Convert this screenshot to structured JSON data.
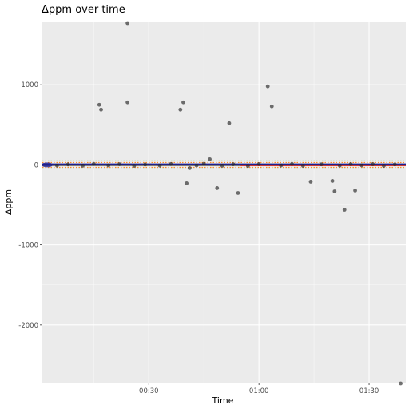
{
  "chart_data": {
    "type": "scatter",
    "title": "Δppm over time",
    "xlabel": "Time",
    "ylabel": "Δppm",
    "x_unit": "minutes",
    "xlim": [
      1,
      100
    ],
    "ylim": [
      -2720,
      1780
    ],
    "x_ticks": [
      {
        "value": 30,
        "label": "00:30"
      },
      {
        "value": 60,
        "label": "01:00"
      },
      {
        "value": 90,
        "label": "01:30"
      }
    ],
    "y_ticks": [
      {
        "value": -2000,
        "label": "-2000"
      },
      {
        "value": -1000,
        "label": "-1000"
      },
      {
        "value": 0,
        "label": "0"
      },
      {
        "value": 1000,
        "label": "1000"
      }
    ],
    "grid": true,
    "legend": "none",
    "reference_lines": [
      {
        "y": 50,
        "color": "#31a354",
        "style": "dotted"
      },
      {
        "y": -50,
        "color": "#31a354",
        "style": "dotted"
      },
      {
        "y": 30,
        "color": "#ff7f0e",
        "style": "dotted"
      },
      {
        "y": -30,
        "color": "#ff7f0e",
        "style": "dotted"
      }
    ],
    "baseline_band": {
      "x_start": 1,
      "x_end": 100,
      "y_center": 0,
      "half_height": 12,
      "colors": [
        "#1f1f8f",
        "#d62728"
      ]
    },
    "series": [
      {
        "points": [
          {
            "x": 24.2,
            "y": 1770
          },
          {
            "x": 16.5,
            "y": 750
          },
          {
            "x": 17.0,
            "y": 690
          },
          {
            "x": 24.2,
            "y": 780
          },
          {
            "x": 38.6,
            "y": 690
          },
          {
            "x": 39.4,
            "y": 780
          },
          {
            "x": 51.9,
            "y": 520
          },
          {
            "x": 62.4,
            "y": 980
          },
          {
            "x": 63.5,
            "y": 730
          },
          {
            "x": 46.6,
            "y": 70
          },
          {
            "x": 41.1,
            "y": -40
          },
          {
            "x": 40.3,
            "y": -230
          },
          {
            "x": 48.6,
            "y": -290
          },
          {
            "x": 54.3,
            "y": -350
          },
          {
            "x": 74.1,
            "y": -210
          },
          {
            "x": 80.0,
            "y": -200
          },
          {
            "x": 80.6,
            "y": -330
          },
          {
            "x": 83.3,
            "y": -560
          },
          {
            "x": 86.2,
            "y": -320
          },
          {
            "x": 98.6,
            "y": -2730
          },
          {
            "x": 5.0,
            "y": -8
          },
          {
            "x": 8.0,
            "y": 6
          },
          {
            "x": 12.0,
            "y": -10
          },
          {
            "x": 15.0,
            "y": 12
          },
          {
            "x": 19.0,
            "y": -6
          },
          {
            "x": 22.0,
            "y": 9
          },
          {
            "x": 26.0,
            "y": -12
          },
          {
            "x": 29.0,
            "y": 5
          },
          {
            "x": 33.0,
            "y": -9
          },
          {
            "x": 36.0,
            "y": 11
          },
          {
            "x": 43.0,
            "y": -7
          },
          {
            "x": 45.0,
            "y": 14
          },
          {
            "x": 50.0,
            "y": -10
          },
          {
            "x": 53.0,
            "y": 8
          },
          {
            "x": 57.0,
            "y": -13
          },
          {
            "x": 60.0,
            "y": 10
          },
          {
            "x": 66.0,
            "y": -8
          },
          {
            "x": 69.0,
            "y": 12
          },
          {
            "x": 72.0,
            "y": -11
          },
          {
            "x": 77.0,
            "y": 7
          },
          {
            "x": 82.0,
            "y": -9
          },
          {
            "x": 85.0,
            "y": 10
          },
          {
            "x": 88.0,
            "y": -6
          },
          {
            "x": 91.0,
            "y": 9
          },
          {
            "x": 94.0,
            "y": -12
          },
          {
            "x": 97.0,
            "y": 6
          }
        ]
      }
    ],
    "colors": {
      "panel": "#ebebeb",
      "grid_major": "#ffffff",
      "point": "#262626",
      "tick": "#333333"
    }
  }
}
